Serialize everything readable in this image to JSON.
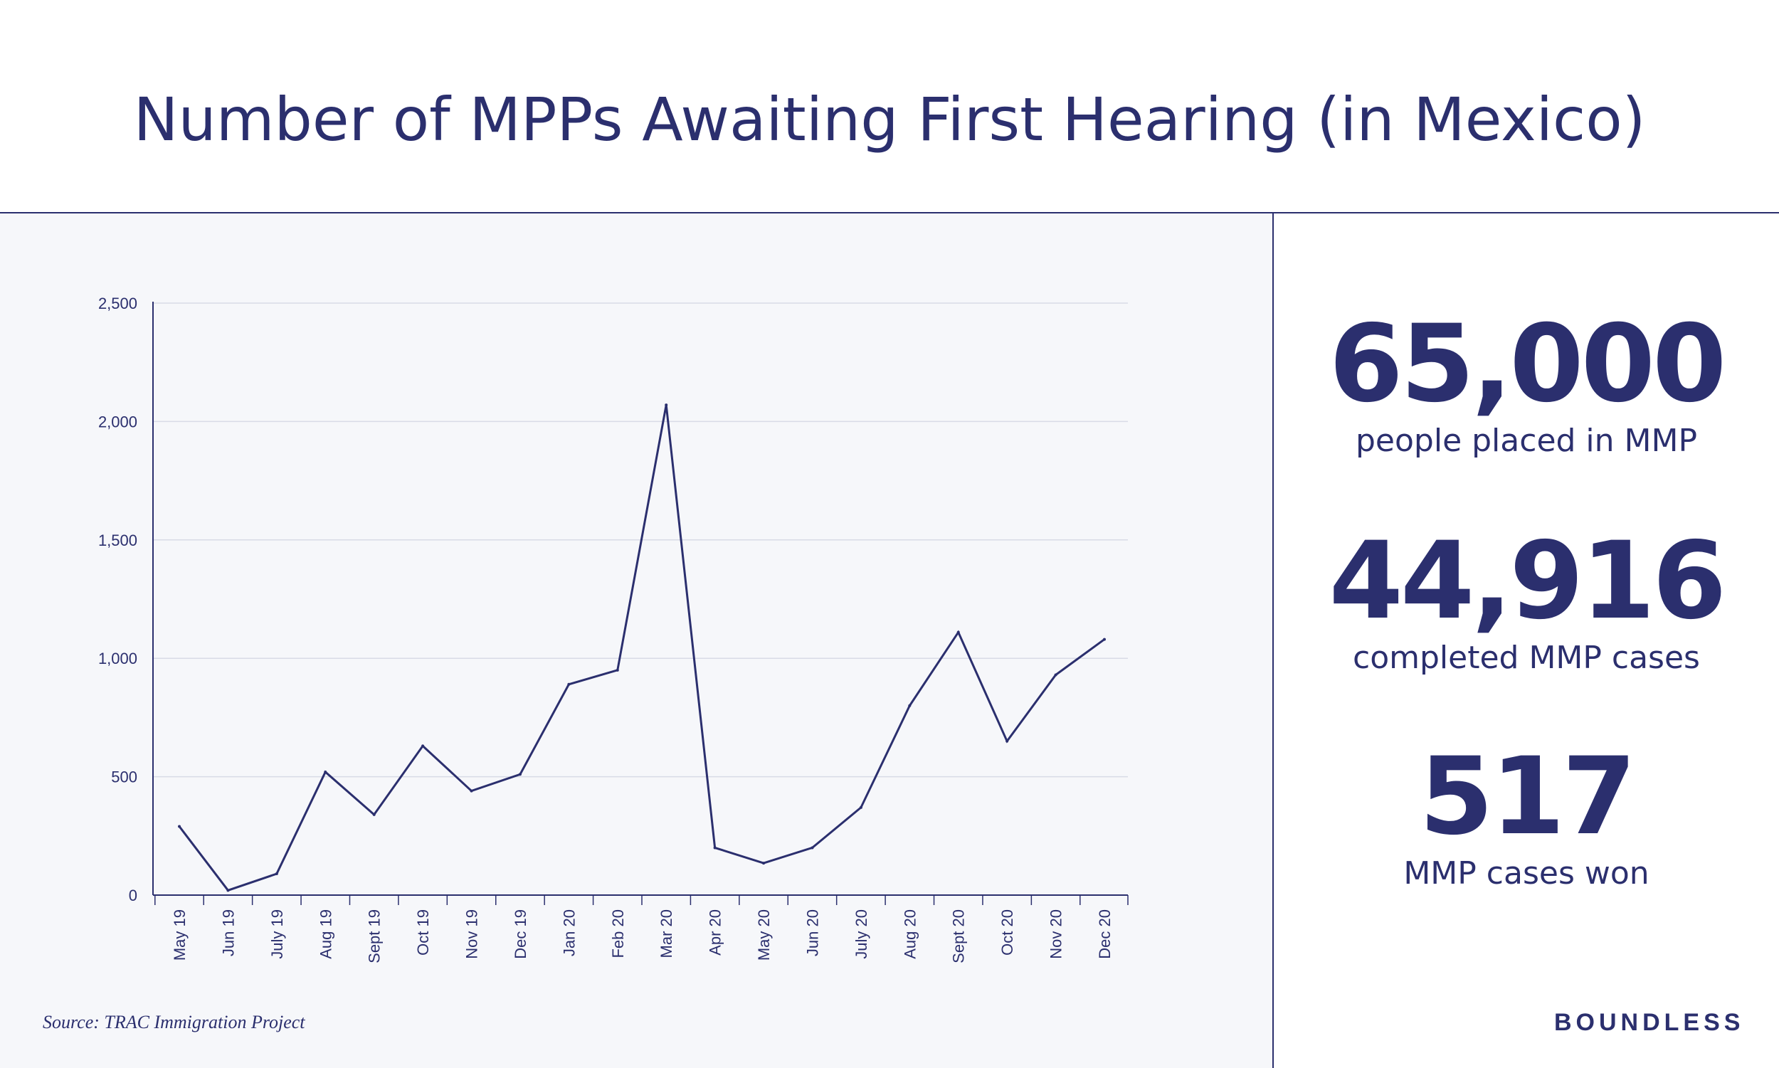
{
  "title": "Number of MPPs Awaiting First Hearing (in Mexico)",
  "source": "Source: TRAC Immigration Project",
  "brand": "BOUNDLESS",
  "stats": [
    {
      "value": "65,000",
      "label": "people placed in MMP"
    },
    {
      "value": "44,916",
      "label": "completed MMP cases"
    },
    {
      "value": "517",
      "label": "MMP cases won"
    }
  ],
  "colors": {
    "primary": "#2b2f6e",
    "panel_bg": "#f6f7fa",
    "grid": "#d8dbe6"
  },
  "chart_data": {
    "type": "line",
    "title": "Number of MPPs Awaiting First Hearing (in Mexico)",
    "categories": [
      "May 19",
      "Jun 19",
      "July 19",
      "Aug 19",
      "Sept 19",
      "Oct 19",
      "Nov 19",
      "Dec 19",
      "Jan 20",
      "Feb 20",
      "Mar 20",
      "Apr 20",
      "May 20",
      "Jun 20",
      "July 20",
      "Aug 20",
      "Sept 20",
      "Oct 20",
      "Nov 20",
      "Dec 20"
    ],
    "values": [
      290,
      20,
      90,
      520,
      340,
      630,
      440,
      510,
      890,
      950,
      2070,
      200,
      135,
      200,
      370,
      800,
      1110,
      650,
      930,
      1080
    ],
    "y_ticks": [
      "0",
      "500",
      "1,000",
      "1,500",
      "2,000",
      "2,500"
    ],
    "ylim": [
      0,
      2500
    ],
    "grid": true,
    "legend": false
  }
}
